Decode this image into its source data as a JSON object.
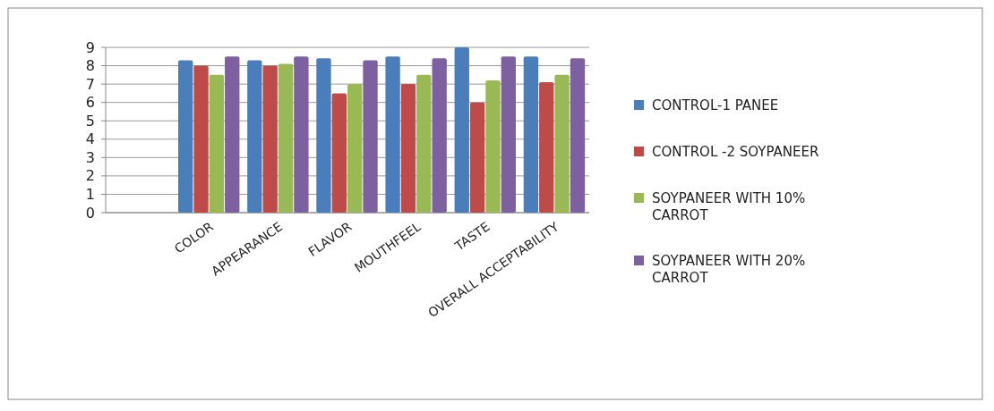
{
  "chart_data": {
    "type": "bar",
    "categories": [
      "COLOR",
      "APPEARANCE",
      "FLAVOR",
      "MOUTHFEEL",
      "TASTE",
      "OVERALL ACCEPTABILITY"
    ],
    "series": [
      {
        "name": "CONTROL-1 PANEE",
        "color": "#4a7ebb",
        "values": [
          8.3,
          8.3,
          8.4,
          8.5,
          9.0,
          8.5
        ]
      },
      {
        "name": "CONTROL -2 SOYPANEER",
        "color": "#be4b48",
        "values": [
          8.0,
          8.0,
          6.5,
          7.0,
          6.0,
          7.1
        ]
      },
      {
        "name": "SOYPANEER WITH 10% CARROT",
        "color": "#98b954",
        "values": [
          7.5,
          8.1,
          7.0,
          7.5,
          7.2,
          7.5
        ]
      },
      {
        "name": "SOYPANEER WITH 20% CARROT",
        "color": "#7d60a0",
        "values": [
          8.5,
          8.5,
          8.3,
          8.4,
          8.5,
          8.4
        ]
      }
    ],
    "ylim": [
      0,
      9
    ],
    "yticks": [
      0,
      1,
      2,
      3,
      4,
      5,
      6,
      7,
      8,
      9
    ],
    "grid": "y",
    "legend": "right"
  }
}
